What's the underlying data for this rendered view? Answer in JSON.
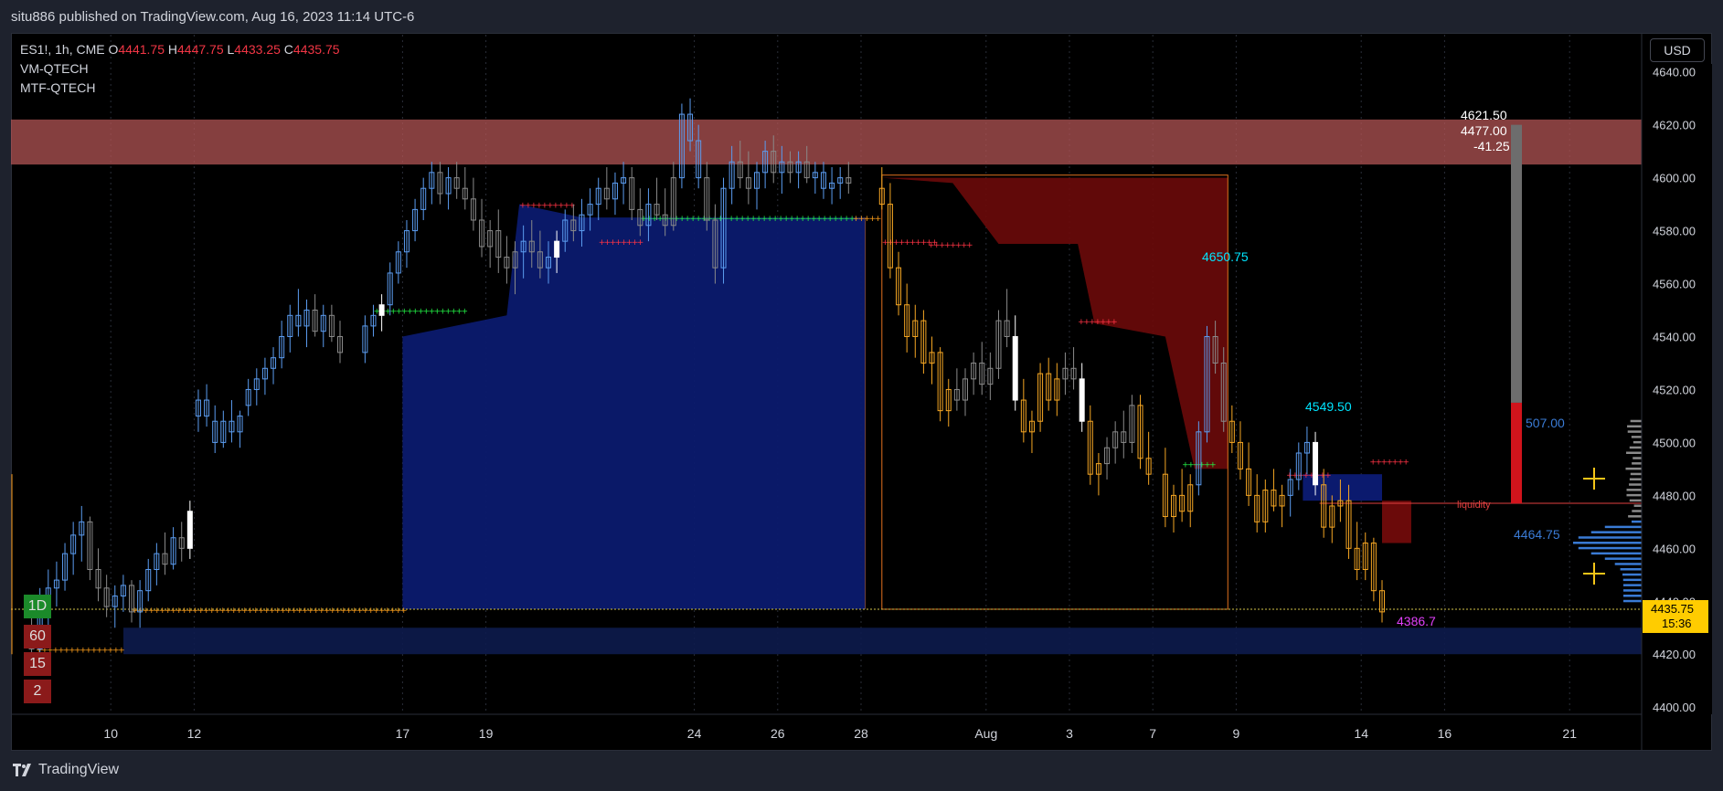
{
  "publish_line": "situ886 published on TradingView.com, Aug 16, 2023 11:14 UTC-6",
  "footer_brand": "TradingView",
  "currency_button": "USD",
  "legend": {
    "ticker": "ES1!, 1h, CME",
    "open_label": "O",
    "open": "4441.75",
    "high_label": "H",
    "high": "4447.75",
    "low_label": "L",
    "low": "4433.25",
    "close_label": "C",
    "close": "4435.75",
    "indicators": [
      "VM-QTECH",
      "MTF-QTECH"
    ]
  },
  "mtf_labels": [
    {
      "text": "1D",
      "color": "#1b8a2a"
    },
    {
      "text": "60",
      "color": "#8b1a1a"
    },
    {
      "text": "15",
      "color": "#8b1a1a"
    },
    {
      "text": "2",
      "color": "#8b1a1a"
    }
  ],
  "colors": {
    "up_candle": "#5b9cf0",
    "down_candle": "#8a8a8a",
    "bear_candle": "#f5a623",
    "blue_zone": "#0b1a6e",
    "red_zone": "#6b0a0a",
    "supply_zone": "#b15454",
    "price_label_bg": "#ffcc00",
    "cyan_label": "#00e5ff",
    "magenta_label": "#e040fb"
  },
  "chart_data": {
    "type": "candlestick",
    "symbol": "ES1!",
    "interval": "1h",
    "exchange": "CME",
    "y_ticks": [
      4400,
      4420,
      4440,
      4460,
      4480,
      4500,
      4520,
      4540,
      4560,
      4580,
      4600,
      4620,
      4640
    ],
    "y_tick_labels": [
      "4400.00",
      "4420.00",
      "4440.00",
      "4460.00",
      "4480.00",
      "4500.00",
      "4520.00",
      "4540.00",
      "4560.00",
      "4580.00",
      "4600.00",
      "4620.00",
      "4640.00"
    ],
    "ylim": [
      4398,
      4643
    ],
    "x_ticks": [
      {
        "label": "10",
        "day": 10
      },
      {
        "label": "12",
        "day": 12
      },
      {
        "label": "17",
        "day": 17
      },
      {
        "label": "19",
        "day": 19
      },
      {
        "label": "24",
        "day": 24
      },
      {
        "label": "26",
        "day": 26
      },
      {
        "label": "28",
        "day": 28
      },
      {
        "label": "Aug",
        "day": 31
      },
      {
        "label": "3",
        "day": 33
      },
      {
        "label": "7",
        "day": 35
      },
      {
        "label": "9",
        "day": 37
      },
      {
        "label": "14",
        "day": 40
      },
      {
        "label": "16",
        "day": 42
      },
      {
        "label": "21",
        "day": 45
      }
    ],
    "bars": [
      [
        8.1,
        4430,
        4440,
        4418,
        4422,
        "d"
      ],
      [
        8.3,
        4422,
        4445,
        4420,
        4440,
        "u"
      ],
      [
        8.5,
        4440,
        4452,
        4430,
        4445,
        "u"
      ],
      [
        8.7,
        4445,
        4455,
        4438,
        4448,
        "u"
      ],
      [
        8.9,
        4448,
        4462,
        4444,
        4458,
        "u"
      ],
      [
        9.1,
        4458,
        4470,
        4450,
        4465,
        "u"
      ],
      [
        9.3,
        4465,
        4476,
        4455,
        4470,
        "u"
      ],
      [
        9.5,
        4470,
        4472,
        4448,
        4452,
        "d"
      ],
      [
        9.7,
        4452,
        4460,
        4440,
        4445,
        "d"
      ],
      [
        9.9,
        4445,
        4450,
        4434,
        4438,
        "d"
      ],
      [
        10.1,
        4438,
        4446,
        4430,
        4442,
        "u"
      ],
      [
        10.3,
        4442,
        4450,
        4436,
        4446,
        "u"
      ],
      [
        10.5,
        4446,
        4448,
        4432,
        4436,
        "d"
      ],
      [
        10.7,
        4436,
        4448,
        4430,
        4444,
        "u"
      ],
      [
        10.9,
        4444,
        4456,
        4440,
        4452,
        "u"
      ],
      [
        11.1,
        4452,
        4462,
        4446,
        4458,
        "u"
      ],
      [
        11.3,
        4458,
        4466,
        4450,
        4454,
        "d"
      ],
      [
        11.5,
        4454,
        4468,
        4452,
        4464,
        "u"
      ],
      [
        11.7,
        4464,
        4470,
        4455,
        4460,
        "d"
      ],
      [
        11.9,
        4460,
        4478,
        4456,
        4474,
        "w"
      ],
      [
        12.1,
        4510,
        4520,
        4504,
        4516,
        "u"
      ],
      [
        12.3,
        4516,
        4522,
        4506,
        4510,
        "u"
      ],
      [
        12.5,
        4508,
        4514,
        4496,
        4500,
        "u"
      ],
      [
        12.7,
        4500,
        4512,
        4498,
        4508,
        "u"
      ],
      [
        12.9,
        4508,
        4516,
        4500,
        4504,
        "u"
      ],
      [
        13.1,
        4504,
        4512,
        4498,
        4510,
        "u"
      ],
      [
        13.3,
        4514,
        4524,
        4510,
        4520,
        "u"
      ],
      [
        13.5,
        4520,
        4528,
        4514,
        4524,
        "u"
      ],
      [
        13.7,
        4524,
        4532,
        4518,
        4528,
        "u"
      ],
      [
        13.9,
        4528,
        4536,
        4522,
        4532,
        "u"
      ],
      [
        14.1,
        4532,
        4546,
        4528,
        4540,
        "u"
      ],
      [
        14.3,
        4540,
        4552,
        4534,
        4548,
        "u"
      ],
      [
        14.5,
        4548,
        4558,
        4540,
        4544,
        "u"
      ],
      [
        14.7,
        4544,
        4554,
        4536,
        4550,
        "u"
      ],
      [
        14.9,
        4550,
        4556,
        4540,
        4542,
        "d"
      ],
      [
        15.1,
        4542,
        4552,
        4536,
        4548,
        "u"
      ],
      [
        15.3,
        4548,
        4552,
        4538,
        4540,
        "d"
      ],
      [
        15.5,
        4540,
        4546,
        4530,
        4534,
        "d"
      ],
      [
        16.1,
        4534,
        4548,
        4530,
        4544,
        "u"
      ],
      [
        16.3,
        4544,
        4552,
        4540,
        4548,
        "u"
      ],
      [
        16.5,
        4548,
        4556,
        4542,
        4552,
        "w"
      ],
      [
        16.7,
        4552,
        4568,
        4548,
        4564,
        "u"
      ],
      [
        16.9,
        4564,
        4576,
        4560,
        4572,
        "u"
      ],
      [
        17.1,
        4572,
        4584,
        4566,
        4580,
        "u"
      ],
      [
        17.3,
        4580,
        4592,
        4576,
        4588,
        "u"
      ],
      [
        17.5,
        4588,
        4600,
        4584,
        4596,
        "u"
      ],
      [
        17.7,
        4596,
        4606,
        4590,
        4602,
        "u"
      ],
      [
        17.9,
        4602,
        4606,
        4590,
        4594,
        "d"
      ],
      [
        18.1,
        4594,
        4604,
        4588,
        4600,
        "u"
      ],
      [
        18.3,
        4600,
        4606,
        4592,
        4596,
        "d"
      ],
      [
        18.5,
        4596,
        4604,
        4588,
        4592,
        "d"
      ],
      [
        18.7,
        4592,
        4600,
        4580,
        4584,
        "d"
      ],
      [
        18.9,
        4584,
        4592,
        4570,
        4574,
        "d"
      ],
      [
        19.1,
        4574,
        4584,
        4566,
        4580,
        "d"
      ],
      [
        19.3,
        4580,
        4588,
        4564,
        4570,
        "d"
      ],
      [
        19.5,
        4570,
        4578,
        4560,
        4566,
        "d"
      ],
      [
        19.7,
        4566,
        4576,
        4556,
        4572,
        "d"
      ],
      [
        19.9,
        4572,
        4582,
        4562,
        4576,
        "u"
      ],
      [
        20.1,
        4576,
        4584,
        4566,
        4572,
        "d"
      ],
      [
        20.3,
        4572,
        4580,
        4562,
        4566,
        "d"
      ],
      [
        20.5,
        4566,
        4576,
        4560,
        4570,
        "u"
      ],
      [
        20.7,
        4570,
        4580,
        4564,
        4576,
        "w"
      ],
      [
        20.9,
        4576,
        4588,
        4572,
        4584,
        "u"
      ],
      [
        21.1,
        4584,
        4590,
        4576,
        4580,
        "d"
      ],
      [
        21.3,
        4580,
        4592,
        4574,
        4586,
        "u"
      ],
      [
        21.5,
        4586,
        4596,
        4580,
        4590,
        "u"
      ],
      [
        21.7,
        4590,
        4600,
        4584,
        4596,
        "u"
      ],
      [
        21.9,
        4596,
        4604,
        4588,
        4592,
        "d"
      ],
      [
        22.1,
        4592,
        4602,
        4586,
        4598,
        "u"
      ],
      [
        22.3,
        4598,
        4606,
        4590,
        4600,
        "u"
      ],
      [
        22.5,
        4600,
        4604,
        4584,
        4588,
        "d"
      ],
      [
        22.7,
        4588,
        4596,
        4578,
        4582,
        "d"
      ],
      [
        22.9,
        4582,
        4596,
        4576,
        4590,
        "u"
      ],
      [
        23.1,
        4590,
        4600,
        4584,
        4586,
        "d"
      ],
      [
        23.3,
        4586,
        4596,
        4578,
        4582,
        "d"
      ],
      [
        23.5,
        4582,
        4606,
        4580,
        4600,
        "d"
      ],
      [
        23.7,
        4600,
        4628,
        4596,
        4624,
        "u"
      ],
      [
        23.9,
        4624,
        4630,
        4610,
        4614,
        "u"
      ],
      [
        24.1,
        4614,
        4620,
        4596,
        4600,
        "u"
      ],
      [
        24.3,
        4600,
        4606,
        4580,
        4584,
        "d"
      ],
      [
        24.5,
        4584,
        4590,
        4560,
        4566,
        "d"
      ],
      [
        24.7,
        4566,
        4600,
        4560,
        4596,
        "u"
      ],
      [
        24.9,
        4596,
        4612,
        4590,
        4606,
        "u"
      ],
      [
        25.1,
        4606,
        4614,
        4596,
        4600,
        "d"
      ],
      [
        25.3,
        4600,
        4610,
        4590,
        4596,
        "d"
      ],
      [
        25.5,
        4596,
        4606,
        4588,
        4602,
        "u"
      ],
      [
        25.7,
        4602,
        4614,
        4596,
        4610,
        "u"
      ],
      [
        25.9,
        4610,
        4616,
        4598,
        4602,
        "d"
      ],
      [
        26.1,
        4602,
        4612,
        4594,
        4606,
        "u"
      ],
      [
        26.3,
        4606,
        4610,
        4598,
        4602,
        "d"
      ],
      [
        26.5,
        4602,
        4610,
        4596,
        4606,
        "u"
      ],
      [
        26.7,
        4606,
        4612,
        4598,
        4600,
        "d"
      ],
      [
        26.9,
        4600,
        4606,
        4594,
        4602,
        "u"
      ],
      [
        27.1,
        4602,
        4606,
        4592,
        4596,
        "u"
      ],
      [
        27.3,
        4596,
        4604,
        4590,
        4598,
        "u"
      ],
      [
        27.5,
        4598,
        4604,
        4592,
        4600,
        "u"
      ],
      [
        27.7,
        4600,
        4606,
        4594,
        4598,
        "d"
      ],
      [
        28.5,
        4596,
        4604,
        4588,
        4590,
        "b"
      ],
      [
        28.7,
        4590,
        4598,
        4562,
        4566,
        "b"
      ],
      [
        28.9,
        4566,
        4572,
        4548,
        4552,
        "b"
      ],
      [
        29.1,
        4552,
        4560,
        4534,
        4540,
        "b"
      ],
      [
        29.3,
        4540,
        4552,
        4532,
        4546,
        "b"
      ],
      [
        29.5,
        4546,
        4550,
        4526,
        4530,
        "b"
      ],
      [
        29.7,
        4530,
        4540,
        4522,
        4534,
        "b"
      ],
      [
        29.9,
        4534,
        4536,
        4508,
        4512,
        "b"
      ],
      [
        30.1,
        4512,
        4524,
        4506,
        4520,
        "b"
      ],
      [
        30.3,
        4520,
        4528,
        4512,
        4516,
        "d"
      ],
      [
        30.5,
        4516,
        4528,
        4510,
        4524,
        "d"
      ],
      [
        30.7,
        4524,
        4534,
        4518,
        4530,
        "d"
      ],
      [
        30.9,
        4530,
        4538,
        4518,
        4522,
        "d"
      ],
      [
        31.1,
        4522,
        4534,
        4516,
        4528,
        "d"
      ],
      [
        31.3,
        4528,
        4550,
        4524,
        4546,
        "d"
      ],
      [
        31.5,
        4546,
        4558,
        4536,
        4540,
        "d"
      ],
      [
        31.7,
        4540,
        4548,
        4512,
        4516,
        "w"
      ],
      [
        31.9,
        4516,
        4524,
        4500,
        4504,
        "b"
      ],
      [
        32.1,
        4504,
        4512,
        4496,
        4508,
        "b"
      ],
      [
        32.3,
        4508,
        4530,
        4504,
        4526,
        "b"
      ],
      [
        32.5,
        4526,
        4532,
        4512,
        4516,
        "b"
      ],
      [
        32.7,
        4516,
        4530,
        4510,
        4524,
        "b"
      ],
      [
        32.9,
        4524,
        4534,
        4518,
        4528,
        "d"
      ],
      [
        33.1,
        4528,
        4536,
        4520,
        4524,
        "d"
      ],
      [
        33.3,
        4524,
        4530,
        4504,
        4508,
        "w"
      ],
      [
        33.5,
        4508,
        4514,
        4484,
        4488,
        "b"
      ],
      [
        33.7,
        4488,
        4496,
        4480,
        4492,
        "b"
      ],
      [
        33.9,
        4492,
        4502,
        4486,
        4498,
        "d"
      ],
      [
        34.1,
        4498,
        4508,
        4492,
        4504,
        "d"
      ],
      [
        34.3,
        4504,
        4512,
        4494,
        4500,
        "d"
      ],
      [
        34.5,
        4500,
        4518,
        4496,
        4514,
        "d"
      ],
      [
        34.7,
        4514,
        4518,
        4490,
        4494,
        "b"
      ],
      [
        34.9,
        4494,
        4504,
        4484,
        4488,
        "b"
      ],
      [
        35.3,
        4488,
        4498,
        4468,
        4472,
        "b"
      ],
      [
        35.5,
        4472,
        4484,
        4466,
        4480,
        "b"
      ],
      [
        35.7,
        4480,
        4490,
        4470,
        4474,
        "b"
      ],
      [
        35.9,
        4474,
        4488,
        4468,
        4484,
        "b"
      ],
      [
        36.1,
        4484,
        4508,
        4480,
        4504,
        "u"
      ],
      [
        36.3,
        4504,
        4544,
        4500,
        4540,
        "u"
      ],
      [
        36.5,
        4540,
        4546,
        4526,
        4530,
        "d"
      ],
      [
        36.7,
        4530,
        4536,
        4504,
        4508,
        "d"
      ],
      [
        36.9,
        4508,
        4514,
        4496,
        4500,
        "b"
      ],
      [
        37.1,
        4500,
        4508,
        4486,
        4490,
        "b"
      ],
      [
        37.3,
        4490,
        4500,
        4476,
        4480,
        "b"
      ],
      [
        37.5,
        4480,
        4488,
        4466,
        4470,
        "b"
      ],
      [
        37.7,
        4470,
        4486,
        4466,
        4482,
        "b"
      ],
      [
        37.9,
        4482,
        4490,
        4474,
        4476,
        "b"
      ],
      [
        38.1,
        4476,
        4484,
        4468,
        4480,
        "b"
      ],
      [
        38.3,
        4480,
        4490,
        4472,
        4486,
        "u"
      ],
      [
        38.5,
        4486,
        4500,
        4482,
        4496,
        "u"
      ],
      [
        38.7,
        4496,
        4506,
        4488,
        4500,
        "u"
      ],
      [
        38.9,
        4500,
        4504,
        4480,
        4484,
        "w"
      ],
      [
        39.1,
        4484,
        4490,
        4464,
        4468,
        "b"
      ],
      [
        39.3,
        4468,
        4480,
        4462,
        4476,
        "b"
      ],
      [
        39.5,
        4476,
        4486,
        4470,
        4478,
        "b"
      ],
      [
        39.7,
        4478,
        4484,
        4456,
        4460,
        "b"
      ],
      [
        39.9,
        4460,
        4470,
        4448,
        4452,
        "b"
      ],
      [
        40.1,
        4452,
        4466,
        4448,
        4462,
        "b"
      ],
      [
        40.3,
        4462,
        4464,
        4440,
        4444,
        "b"
      ],
      [
        40.5,
        4444,
        4448,
        4432,
        4436,
        "b"
      ]
    ],
    "zones": {
      "supply": {
        "y0": 4605,
        "y1": 4622
      },
      "demand_bottom": {
        "y0": 4420,
        "y1": 4430
      }
    },
    "annotations": [
      {
        "text": "4621.50",
        "kind": "measure"
      },
      {
        "text": "4477.00",
        "kind": "measure"
      },
      {
        "text": "-41.25",
        "kind": "measure"
      },
      {
        "text": "4650.75",
        "kind": "cyan"
      },
      {
        "text": "4549.50",
        "kind": "cyan"
      },
      {
        "text": "507.00",
        "kind": "blue"
      },
      {
        "text": "4464.75",
        "kind": "blue"
      },
      {
        "text": "liquidity",
        "kind": "red"
      },
      {
        "text": "4386.7",
        "kind": "magenta"
      }
    ],
    "last_price": "4435.75",
    "countdown": "15:36"
  }
}
